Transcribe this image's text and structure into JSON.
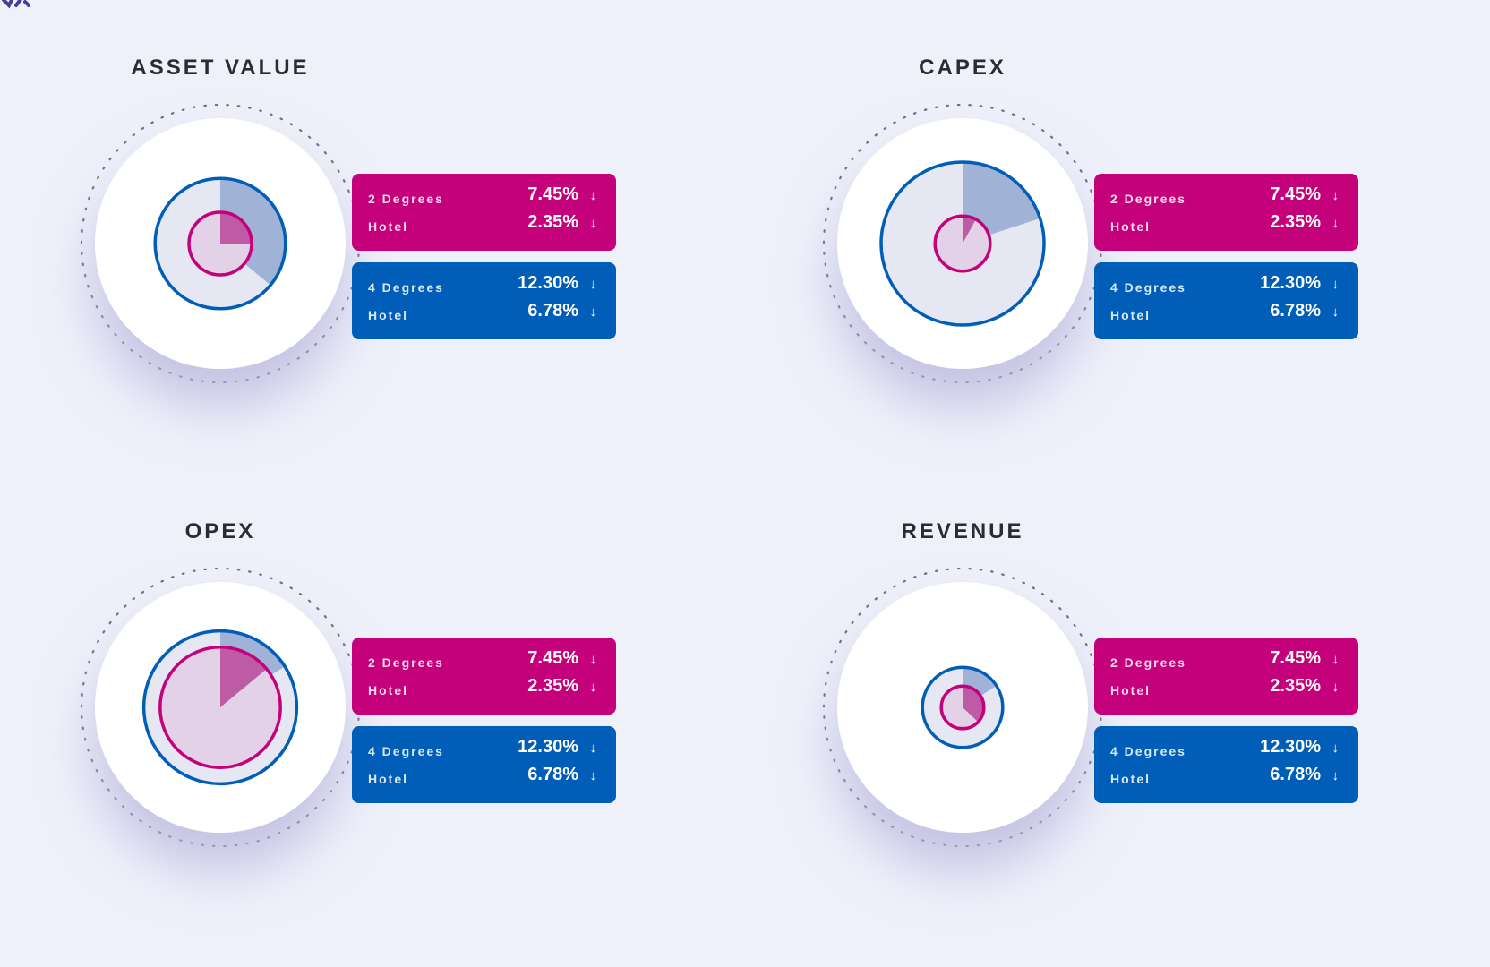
{
  "colors": {
    "pink": "#c4007a",
    "blue": "#005eb8",
    "background": "#eef0fa",
    "blue_fill": "#a0b2d6",
    "pink_fill": "#e3d1e8",
    "pink_wedge": "#b84e9e",
    "inner_disc": "#e5e8f2"
  },
  "icons": {
    "arrow": "arrow-down-icon",
    "arrow_glyph": "↓"
  },
  "chart_data": [
    {
      "type": "pie",
      "title": "ASSET VALUE",
      "outer_share": 0.36,
      "inner_share": 0.25,
      "outer_ring_scale": 0.52,
      "inner_ring_scale": 0.25,
      "legend": {
        "degrees2": {
          "label1": "2 Degrees",
          "value1": "7.45%",
          "label2": "Hotel",
          "value2": "2.35%"
        },
        "degrees4": {
          "label1": "4 Degrees",
          "value1": "12.30%",
          "label2": "Hotel",
          "value2": "6.78%"
        }
      }
    },
    {
      "type": "pie",
      "title": "CAPEX",
      "outer_share": 0.2,
      "inner_share": 0.08,
      "outer_ring_scale": 0.65,
      "inner_ring_scale": 0.22,
      "legend": {
        "degrees2": {
          "label1": "2 Degrees",
          "value1": "7.45%",
          "label2": "Hotel",
          "value2": "2.35%"
        },
        "degrees4": {
          "label1": "4 Degrees",
          "value1": "12.30%",
          "label2": "Hotel",
          "value2": "6.78%"
        }
      }
    },
    {
      "type": "pie",
      "title": "OPEX",
      "outer_share": 0.16,
      "inner_share": 0.14,
      "outer_ring_scale": 0.61,
      "inner_ring_scale": 0.48,
      "legend": {
        "degrees2": {
          "label1": "2 Degrees",
          "value1": "7.45%",
          "label2": "Hotel",
          "value2": "2.35%"
        },
        "degrees4": {
          "label1": "4 Degrees",
          "value1": "12.30%",
          "label2": "Hotel",
          "value2": "6.78%"
        }
      }
    },
    {
      "type": "pie",
      "title": "REVENUE",
      "outer_share": 0.16,
      "inner_share": 0.37,
      "outer_ring_scale": 0.32,
      "inner_ring_scale": 0.17,
      "legend": {
        "degrees2": {
          "label1": "2 Degrees",
          "value1": "7.45%",
          "label2": "Hotel",
          "value2": "2.35%"
        },
        "degrees4": {
          "label1": "4 Degrees",
          "value1": "12.30%",
          "label2": "Hotel",
          "value2": "6.78%"
        }
      }
    }
  ]
}
